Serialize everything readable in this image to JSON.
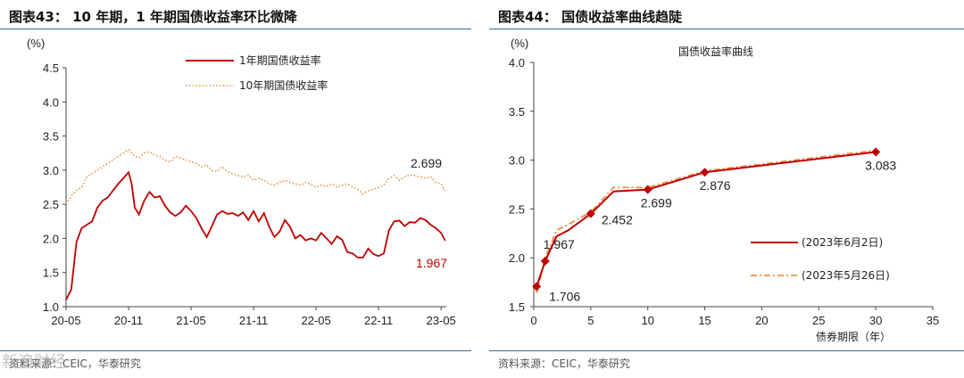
{
  "colors": {
    "red": "#c00000",
    "orange": "#e9944a",
    "rule": "#3a6e96",
    "axis": "#444444"
  },
  "left": {
    "title": "图表43： 10 年期，1 年期国债收益率环比微降",
    "source": "资料来源：CEIC，华泰研究",
    "watermark": "新浪财经",
    "chart_data": {
      "type": "line",
      "title": "",
      "ylabel": "(%)",
      "ylim": [
        1.0,
        4.5
      ],
      "yticks": [
        "1.0",
        "1.5",
        "2.0",
        "2.5",
        "3.0",
        "3.5",
        "4.0",
        "4.5"
      ],
      "xlim": [
        0,
        36.5
      ],
      "xticks": [
        {
          "x": 0,
          "label": "20-05"
        },
        {
          "x": 6,
          "label": "20-11"
        },
        {
          "x": 12,
          "label": "21-05"
        },
        {
          "x": 18,
          "label": "21-11"
        },
        {
          "x": 24,
          "label": "22-05"
        },
        {
          "x": 30,
          "label": "22-11"
        },
        {
          "x": 36,
          "label": "23-05"
        }
      ],
      "series": [
        {
          "name": "1年期国债收益率",
          "color": "#c00000",
          "style": "solid",
          "x": [
            0,
            0.5,
            1,
            1.5,
            2,
            2.5,
            3,
            3.5,
            4,
            4.5,
            5,
            5.5,
            6,
            6.3,
            6.6,
            7,
            7.5,
            8,
            8.5,
            9,
            9.5,
            10,
            10.5,
            11,
            11.5,
            12,
            12.5,
            13,
            13.5,
            14,
            14.5,
            15,
            15.5,
            16,
            16.5,
            17,
            17.5,
            18,
            18.5,
            19,
            19.5,
            20,
            20.5,
            21,
            21.5,
            22,
            22.5,
            23,
            23.5,
            24,
            24.5,
            25,
            25.5,
            26,
            26.5,
            27,
            27.5,
            28,
            28.5,
            29,
            29.5,
            30,
            30.5,
            31,
            31.5,
            32,
            32.5,
            33,
            33.5,
            34,
            34.5,
            35,
            35.5,
            36,
            36.4
          ],
          "values": [
            1.1,
            1.25,
            1.95,
            2.15,
            2.2,
            2.25,
            2.45,
            2.55,
            2.6,
            2.7,
            2.8,
            2.88,
            2.97,
            2.8,
            2.45,
            2.35,
            2.55,
            2.68,
            2.6,
            2.62,
            2.48,
            2.38,
            2.33,
            2.38,
            2.48,
            2.4,
            2.3,
            2.15,
            2.02,
            2.18,
            2.35,
            2.4,
            2.36,
            2.37,
            2.33,
            2.38,
            2.27,
            2.4,
            2.25,
            2.37,
            2.17,
            2.02,
            2.1,
            2.27,
            2.17,
            2.0,
            2.05,
            1.97,
            2.0,
            1.97,
            2.08,
            2.0,
            1.92,
            2.03,
            1.98,
            1.8,
            1.78,
            1.72,
            1.72,
            1.85,
            1.77,
            1.74,
            1.78,
            2.12,
            2.25,
            2.26,
            2.18,
            2.24,
            2.23,
            2.3,
            2.27,
            2.2,
            2.15,
            2.08,
            1.967
          ]
        },
        {
          "name": "10年期国债收益率",
          "color": "#e9944a",
          "style": "dotted",
          "x": [
            0,
            0.5,
            1,
            1.5,
            2,
            2.5,
            3,
            3.5,
            4,
            4.5,
            5,
            5.5,
            6,
            6.5,
            7,
            7.5,
            8,
            8.5,
            9,
            9.5,
            10,
            10.5,
            11,
            11.5,
            12,
            12.5,
            13,
            13.5,
            14,
            14.5,
            15,
            15.5,
            16,
            16.5,
            17,
            17.5,
            18,
            18.5,
            19,
            19.5,
            20,
            20.5,
            21,
            21.5,
            22,
            22.5,
            23,
            23.5,
            24,
            24.5,
            25,
            25.5,
            26,
            26.5,
            27,
            27.5,
            28,
            28.5,
            29,
            29.5,
            30,
            30.5,
            31,
            31.5,
            32,
            32.5,
            33,
            33.5,
            34,
            34.5,
            35,
            35.5,
            36,
            36.4
          ],
          "values": [
            2.5,
            2.62,
            2.7,
            2.75,
            2.9,
            2.95,
            3.0,
            3.05,
            3.1,
            3.15,
            3.2,
            3.25,
            3.3,
            3.22,
            3.18,
            3.25,
            3.27,
            3.22,
            3.2,
            3.15,
            3.12,
            3.2,
            3.18,
            3.15,
            3.12,
            3.1,
            3.05,
            3.08,
            3.0,
            2.98,
            3.05,
            2.98,
            2.95,
            2.92,
            2.9,
            2.93,
            2.85,
            2.88,
            2.85,
            2.8,
            2.78,
            2.82,
            2.85,
            2.82,
            2.8,
            2.78,
            2.82,
            2.79,
            2.75,
            2.78,
            2.76,
            2.8,
            2.75,
            2.78,
            2.8,
            2.75,
            2.72,
            2.65,
            2.7,
            2.72,
            2.75,
            2.78,
            2.88,
            2.92,
            2.85,
            2.9,
            2.93,
            2.92,
            2.9,
            2.88,
            2.9,
            2.82,
            2.8,
            2.699
          ]
        }
      ],
      "annotations": [
        {
          "text": "2.699",
          "series": "10年期国债收益率"
        },
        {
          "text": "1.967",
          "series": "1年期国债收益率"
        }
      ],
      "legend_position": "top-center"
    }
  },
  "right": {
    "title": "图表44： 国债收益率曲线趋陡",
    "source": "资料来源：CEIC，华泰研究",
    "chart_data": {
      "type": "line",
      "title": "国债收益率曲线",
      "ylabel": "(%)",
      "xlabel": "债券期限（年）",
      "ylim": [
        1.5,
        4.0
      ],
      "xlim": [
        0,
        35
      ],
      "yticks": [
        "1.5",
        "2.0",
        "2.5",
        "3.0",
        "3.5",
        "4.0"
      ],
      "xticks": [
        "0",
        "5",
        "10",
        "15",
        "20",
        "25",
        "30",
        "35"
      ],
      "series": [
        {
          "name": "(2023年6月2日)",
          "color": "#c00000",
          "style": "solid",
          "x": [
            0.25,
            1,
            2,
            3,
            5,
            7,
            10,
            15,
            30
          ],
          "values": [
            1.706,
            1.967,
            2.22,
            2.28,
            2.452,
            2.68,
            2.699,
            2.876,
            3.083
          ]
        },
        {
          "name": "(2023年5月26日)",
          "color": "#e9944a",
          "style": "dashdot",
          "x": [
            0.25,
            1,
            2,
            3,
            5,
            7,
            10,
            15,
            30
          ],
          "values": [
            1.64,
            2.0,
            2.28,
            2.34,
            2.47,
            2.72,
            2.72,
            2.89,
            3.1
          ]
        }
      ],
      "markers": {
        "series": "(2023年6月2日)",
        "x": [
          0.25,
          1,
          5,
          10,
          15,
          30
        ]
      },
      "data_labels": [
        "1.706",
        "1.967",
        "2.452",
        "2.699",
        "2.876",
        "3.083"
      ],
      "legend_position": "bottom-right"
    }
  }
}
